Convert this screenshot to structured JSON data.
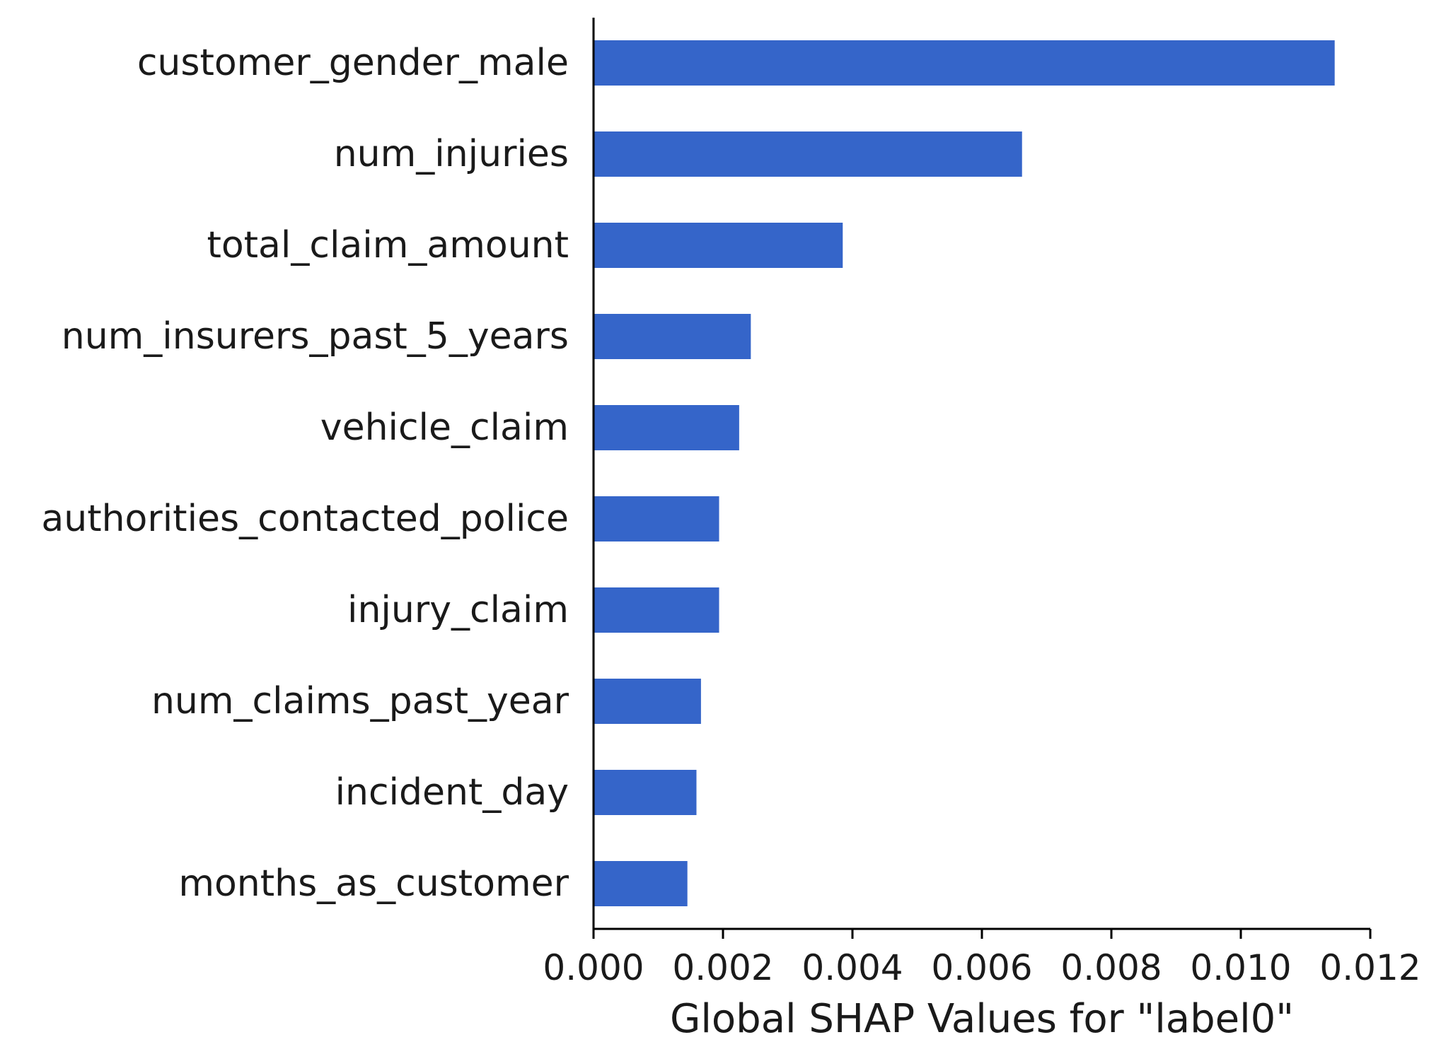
{
  "chart_data": {
    "type": "bar",
    "orientation": "horizontal",
    "title": "",
    "xlabel": "Global SHAP Values for \"label0\"",
    "ylabel": "",
    "categories": [
      "customer_gender_male",
      "num_injuries",
      "total_claim_amount",
      "num_insurers_past_5_years",
      "vehicle_claim",
      "authorities_contacted_police",
      "injury_claim",
      "num_claims_past_year",
      "incident_day",
      "months_as_customer"
    ],
    "values": [
      0.01145,
      0.00662,
      0.00385,
      0.00243,
      0.00225,
      0.00194,
      0.00194,
      0.00166,
      0.00159,
      0.00145
    ],
    "xlim": [
      0,
      0.012
    ],
    "xticks": [
      "0.000",
      "0.002",
      "0.004",
      "0.006",
      "0.008",
      "0.010",
      "0.012"
    ],
    "grid": false,
    "legend": "none",
    "bar_color": "#3565c9",
    "axis_color": "#000000"
  }
}
